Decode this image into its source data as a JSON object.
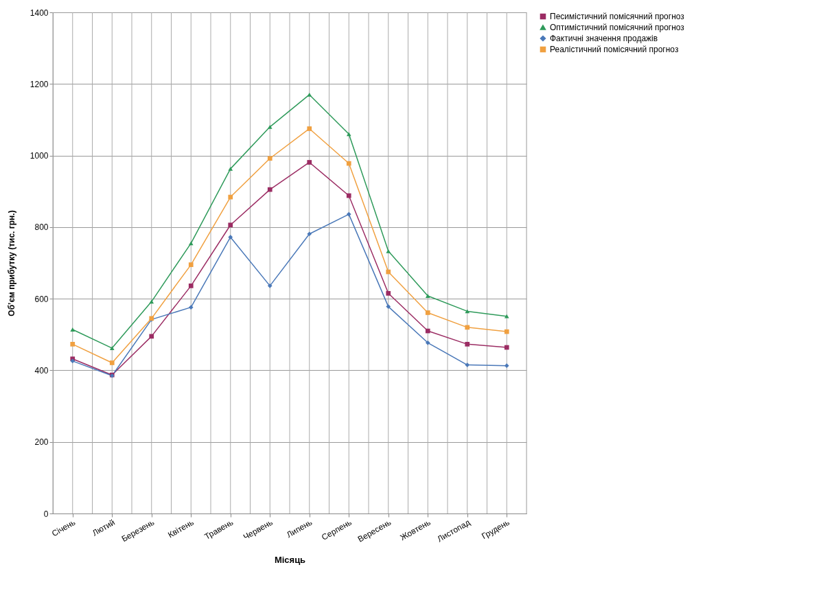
{
  "chart_data": {
    "type": "line",
    "xlabel": "Місяць",
    "ylabel": "Об’єм прибутку (тис. грн.)",
    "categories": [
      "Січень",
      "Лютий",
      "Березень",
      "Квітень",
      "Травень",
      "Червень",
      "Липень",
      "Серпень",
      "Вересень",
      "Жовтень",
      "Листопад",
      "Грудень"
    ],
    "series": [
      {
        "name": "Песимістичний помісячний прогноз",
        "color": "#9b2c63",
        "marker": "square",
        "values": [
          432,
          387,
          495,
          636,
          806,
          905,
          981,
          888,
          615,
          510,
          473,
          464
        ]
      },
      {
        "name": "Оптимістичний помісячний прогноз",
        "color": "#2e9a5a",
        "marker": "triangle",
        "values": [
          514,
          462,
          592,
          755,
          963,
          1080,
          1170,
          1060,
          733,
          608,
          565,
          551
        ]
      },
      {
        "name": "Фактичні значення продажів",
        "color": "#4a78b8",
        "marker": "diamond",
        "values": [
          426,
          385,
          542,
          576,
          772,
          636,
          781,
          836,
          578,
          477,
          415,
          413
        ]
      },
      {
        "name": "Реалістичний помісячний прогноз",
        "color": "#f0a040",
        "marker": "square",
        "values": [
          473,
          421,
          545,
          695,
          884,
          992,
          1075,
          978,
          675,
          561,
          520,
          508
        ]
      }
    ],
    "ylim": [
      0,
      1400
    ],
    "yticks": [
      0,
      200,
      400,
      600,
      800,
      1000,
      1200,
      1400
    ],
    "grid": true,
    "legend": "right",
    "line_style": "solid"
  }
}
